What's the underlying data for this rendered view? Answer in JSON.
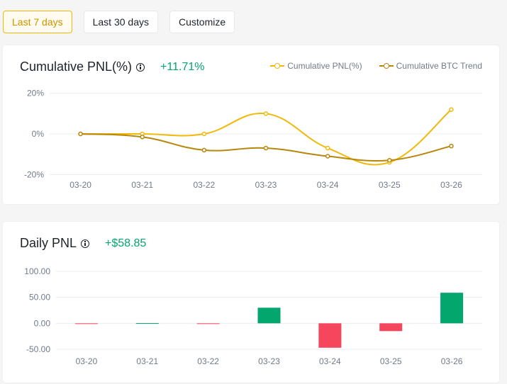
{
  "range_buttons": [
    {
      "label": "Last 7 days",
      "active": true
    },
    {
      "label": "Last 30 days",
      "active": false
    },
    {
      "label": "Customize",
      "active": false
    }
  ],
  "colors": {
    "accent": "#f0b90b",
    "btc_trend": "#b8860b",
    "positive": "#03a66d",
    "negative": "#f6465d",
    "grid": "#eaecef",
    "axis_text": "#707a8a"
  },
  "pnl_card": {
    "title": "Cumulative PNL(%)",
    "value": "+11.71%",
    "info_icon": "info-icon"
  },
  "daily_card": {
    "title": "Daily PNL",
    "value": "+$58.85",
    "info_icon": "info-icon"
  },
  "chart_data": [
    {
      "type": "line",
      "title": "Cumulative PNL(%)",
      "categories": [
        "03-20",
        "03-21",
        "03-22",
        "03-23",
        "03-24",
        "03-25",
        "03-26"
      ],
      "y_ticks": [
        "20%",
        "0%",
        "-20%"
      ],
      "y_tick_values": [
        20,
        0,
        -20
      ],
      "ylim": [
        -22,
        22
      ],
      "legend_position": "top-right",
      "grid": true,
      "series": [
        {
          "name": "Cumulative PNL(%)",
          "values": [
            0,
            0,
            0,
            10,
            -7,
            -14,
            12
          ]
        },
        {
          "name": "Cumulative BTC Trend",
          "values": [
            0,
            -1.5,
            -8,
            -7,
            -11,
            -13,
            -6
          ]
        }
      ]
    },
    {
      "type": "bar",
      "title": "Daily PNL",
      "categories": [
        "03-20",
        "03-21",
        "03-22",
        "03-23",
        "03-24",
        "03-25",
        "03-26"
      ],
      "y_ticks": [
        "100.00",
        "50.00",
        "0.00",
        "-50.00"
      ],
      "y_tick_values": [
        100,
        50,
        0,
        -50
      ],
      "ylim": [
        -50,
        100
      ],
      "grid": true,
      "values": [
        -0.5,
        0.5,
        -0.5,
        30,
        -47,
        -15,
        58.85
      ]
    }
  ]
}
